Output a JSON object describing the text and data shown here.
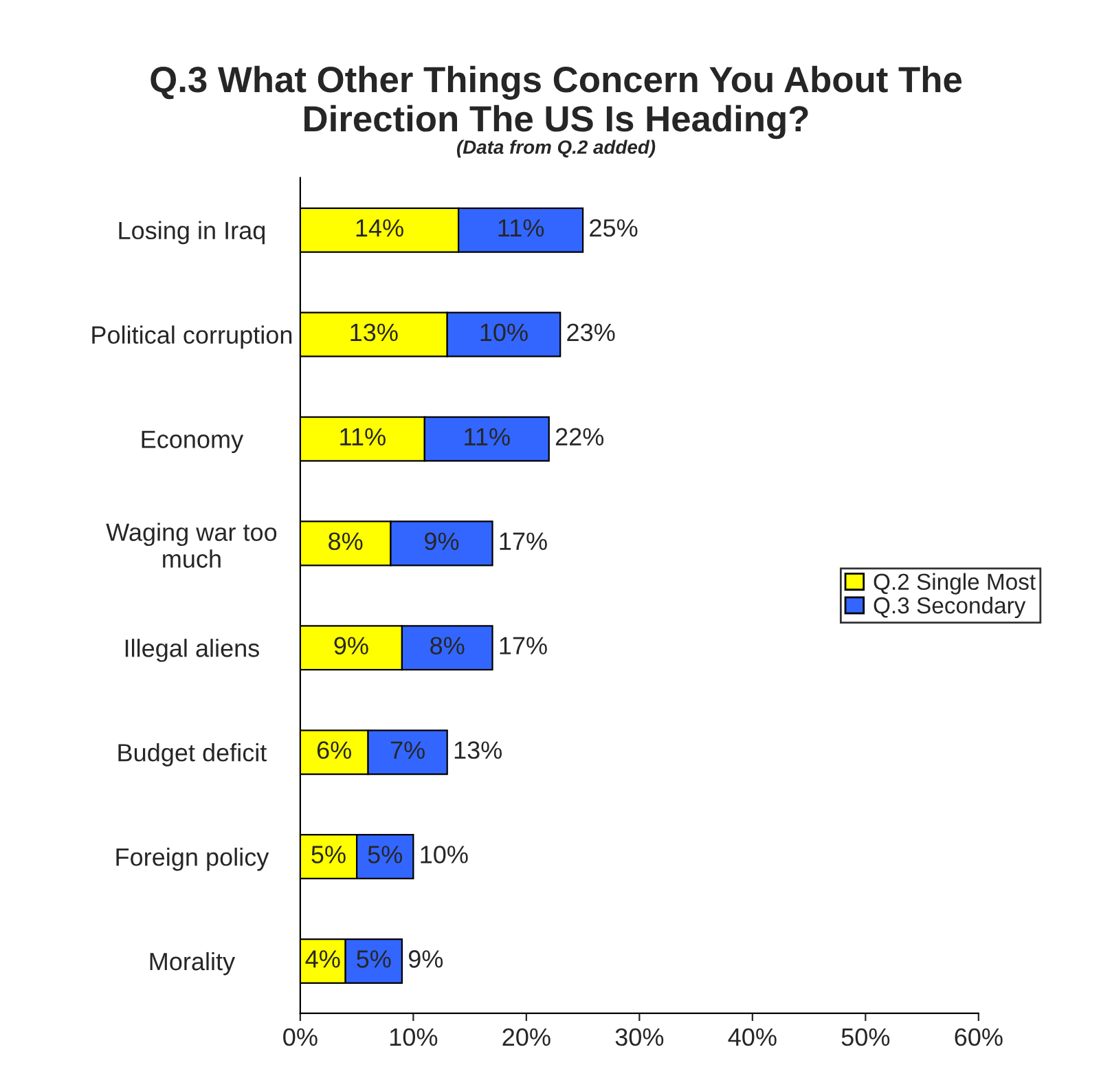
{
  "chart_data": {
    "type": "bar",
    "orientation": "horizontal",
    "stacked": true,
    "title": "Q.3 What Other Things Concern You About The\nDirection The US Is Heading?",
    "subtitle": "(Data from Q.2 added)",
    "categories": [
      "Losing in Iraq",
      "Political corruption",
      "Economy",
      "Waging war too\nmuch",
      "Illegal aliens",
      "Budget deficit",
      "Foreign policy",
      "Morality"
    ],
    "series": [
      {
        "name": "Q.2 Single Most",
        "color": "#ffff00",
        "values": [
          14,
          13,
          11,
          8,
          9,
          6,
          5,
          4
        ],
        "value_labels": [
          "14%",
          "13%",
          "11%",
          "8%",
          "9%",
          "6%",
          "5%",
          "4%"
        ]
      },
      {
        "name": "Q.3 Secondary",
        "color": "#3366ff",
        "values": [
          11,
          10,
          11,
          9,
          8,
          7,
          5,
          5
        ],
        "value_labels": [
          "11%",
          "10%",
          "11%",
          "9%",
          "8%",
          "7%",
          "5%",
          "5%"
        ]
      }
    ],
    "totals": [
      "25%",
      "23%",
      "22%",
      "17%",
      "17%",
      "13%",
      "10%",
      "9%"
    ],
    "xlim": [
      0,
      60
    ],
    "xticks": [
      {
        "value": 0,
        "label": "0%"
      },
      {
        "value": 10,
        "label": "10%"
      },
      {
        "value": 20,
        "label": "20%"
      },
      {
        "value": 30,
        "label": "30%"
      },
      {
        "value": 40,
        "label": "40%"
      },
      {
        "value": 50,
        "label": "50%"
      },
      {
        "value": 60,
        "label": "60%"
      }
    ],
    "grid": false,
    "legend": "right"
  }
}
